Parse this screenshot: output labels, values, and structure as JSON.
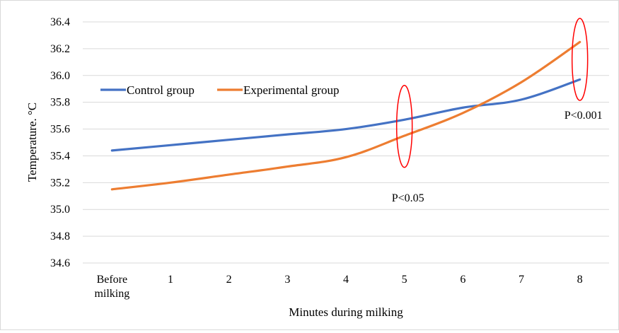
{
  "chart_data": {
    "type": "line",
    "title": "",
    "xlabel": "Minutes during milking",
    "ylabel": "Temperature. °C",
    "categories": [
      "Before milking",
      "1",
      "2",
      "3",
      "4",
      "5",
      "6",
      "7",
      "8"
    ],
    "ylim": [
      34.6,
      36.4
    ],
    "yticks": [
      "34.6",
      "34.8",
      "35.0",
      "35.2",
      "35.4",
      "35.6",
      "35.8",
      "36.0",
      "36.2",
      "36.4"
    ],
    "grid": true,
    "legend_position": "top-left",
    "series": [
      {
        "name": "Control group",
        "color": "#4472C4",
        "values": [
          35.44,
          35.48,
          35.52,
          35.56,
          35.6,
          35.67,
          35.76,
          35.82,
          35.97
        ]
      },
      {
        "name": "Experimental group",
        "color": "#ED7D31",
        "values": [
          35.15,
          35.2,
          35.26,
          35.32,
          35.39,
          35.55,
          35.72,
          35.95,
          36.25
        ]
      }
    ],
    "annotations": [
      {
        "text": "P<0.05",
        "category_index": 5,
        "color": "#FF0000"
      },
      {
        "text": "P<0.001",
        "category_index": 8,
        "color": "#FF0000"
      }
    ]
  }
}
